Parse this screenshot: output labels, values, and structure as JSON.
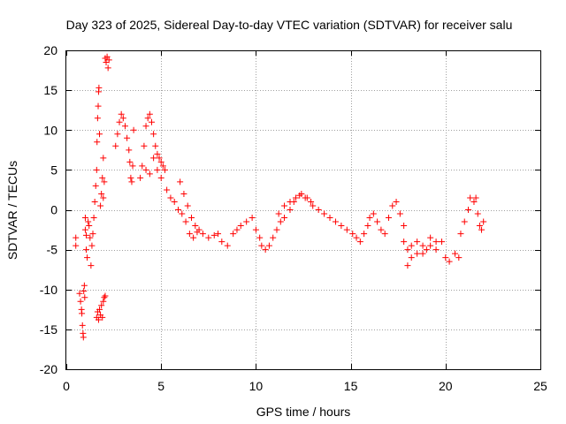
{
  "chart_data": {
    "type": "scatter",
    "title": "Day 323 of 2025, Sidereal Day-to-day VTEC variation (SDTVAR) for receiver salu",
    "xlabel": "GPS time / hours",
    "ylabel": "SDTVAR / TECUs",
    "xlim": [
      0,
      25
    ],
    "ylim": [
      -20,
      20
    ],
    "xticks": [
      0,
      5,
      10,
      15,
      20,
      25
    ],
    "yticks": [
      -20,
      -15,
      -10,
      -5,
      0,
      5,
      10,
      15,
      20
    ],
    "grid": true,
    "marker": "+",
    "color": "#ff0000",
    "series": [
      {
        "name": "SDTVAR",
        "points": [
          [
            0.5,
            -3.5
          ],
          [
            0.5,
            -4.5
          ],
          [
            0.7,
            -10.5
          ],
          [
            0.75,
            -11.5
          ],
          [
            0.8,
            -12.5
          ],
          [
            0.82,
            -13.0
          ],
          [
            0.85,
            -14.5
          ],
          [
            0.88,
            -15.5
          ],
          [
            0.9,
            -16.0
          ],
          [
            0.92,
            -10.2
          ],
          [
            0.95,
            -9.5
          ],
          [
            0.97,
            -11.0
          ],
          [
            1.0,
            -1.0
          ],
          [
            1.0,
            -2.5
          ],
          [
            1.05,
            -3.2
          ],
          [
            1.05,
            -5.0
          ],
          [
            1.1,
            -6.0
          ],
          [
            1.15,
            -1.5
          ],
          [
            1.2,
            -2.0
          ],
          [
            1.25,
            -3.5
          ],
          [
            1.3,
            -7.0
          ],
          [
            1.35,
            -4.5
          ],
          [
            1.4,
            -3.0
          ],
          [
            1.45,
            -1.0
          ],
          [
            1.5,
            1.0
          ],
          [
            1.55,
            3.0
          ],
          [
            1.6,
            5.0
          ],
          [
            1.62,
            8.5
          ],
          [
            1.65,
            11.5
          ],
          [
            1.68,
            13.0
          ],
          [
            1.7,
            14.8
          ],
          [
            1.72,
            15.3
          ],
          [
            1.75,
            9.5
          ],
          [
            1.6,
            -13.5
          ],
          [
            1.65,
            -12.8
          ],
          [
            1.7,
            -13.8
          ],
          [
            1.75,
            -12.5
          ],
          [
            1.8,
            -13.2
          ],
          [
            1.85,
            -12.0
          ],
          [
            1.9,
            -13.5
          ],
          [
            1.95,
            -11.5
          ],
          [
            2.0,
            -11.0
          ],
          [
            2.05,
            -10.8
          ],
          [
            1.8,
            0.5
          ],
          [
            1.85,
            2.0
          ],
          [
            1.9,
            4.0
          ],
          [
            1.95,
            6.5
          ],
          [
            2.0,
            3.5
          ],
          [
            1.95,
            1.5
          ],
          [
            2.05,
            19.0
          ],
          [
            2.1,
            18.5
          ],
          [
            2.15,
            19.2
          ],
          [
            2.2,
            17.8
          ],
          [
            2.25,
            18.8
          ],
          [
            2.6,
            8.0
          ],
          [
            2.7,
            9.5
          ],
          [
            2.8,
            11.0
          ],
          [
            2.9,
            12.0
          ],
          [
            3.0,
            11.5
          ],
          [
            3.1,
            10.5
          ],
          [
            3.2,
            9.0
          ],
          [
            3.3,
            7.5
          ],
          [
            3.35,
            6.0
          ],
          [
            3.4,
            4.0
          ],
          [
            3.45,
            3.5
          ],
          [
            3.5,
            5.5
          ],
          [
            3.55,
            10.0
          ],
          [
            3.9,
            4.0
          ],
          [
            4.0,
            5.5
          ],
          [
            4.1,
            8.0
          ],
          [
            4.2,
            10.5
          ],
          [
            4.3,
            11.5
          ],
          [
            4.4,
            12.0
          ],
          [
            4.5,
            11.0
          ],
          [
            4.6,
            9.5
          ],
          [
            4.7,
            8.0
          ],
          [
            4.8,
            7.0
          ],
          [
            4.9,
            6.5
          ],
          [
            5.0,
            6.0
          ],
          [
            4.2,
            5.0
          ],
          [
            4.4,
            4.5
          ],
          [
            4.6,
            6.5
          ],
          [
            4.8,
            5.0
          ],
          [
            5.0,
            4.0
          ],
          [
            5.1,
            5.5
          ],
          [
            5.2,
            5.0
          ],
          [
            5.3,
            2.5
          ],
          [
            5.5,
            1.5
          ],
          [
            5.7,
            1.0
          ],
          [
            5.9,
            0.0
          ],
          [
            6.1,
            -0.5
          ],
          [
            6.0,
            3.5
          ],
          [
            6.2,
            2.0
          ],
          [
            6.4,
            0.5
          ],
          [
            6.6,
            -1.0
          ],
          [
            6.8,
            -2.0
          ],
          [
            7.0,
            -2.5
          ],
          [
            6.3,
            -1.5
          ],
          [
            6.5,
            -3.0
          ],
          [
            6.7,
            -3.5
          ],
          [
            6.9,
            -2.8
          ],
          [
            7.2,
            -3.0
          ],
          [
            7.5,
            -3.5
          ],
          [
            7.8,
            -3.2
          ],
          [
            8.0,
            -3.0
          ],
          [
            8.2,
            -4.0
          ],
          [
            8.5,
            -4.5
          ],
          [
            8.8,
            -3.0
          ],
          [
            9.0,
            -2.5
          ],
          [
            9.2,
            -2.0
          ],
          [
            9.5,
            -1.5
          ],
          [
            9.8,
            -1.0
          ],
          [
            10.0,
            -2.5
          ],
          [
            10.2,
            -3.5
          ],
          [
            10.3,
            -4.5
          ],
          [
            10.5,
            -5.0
          ],
          [
            10.7,
            -4.5
          ],
          [
            10.9,
            -3.5
          ],
          [
            11.1,
            -2.5
          ],
          [
            11.3,
            -1.5
          ],
          [
            11.5,
            -1.0
          ],
          [
            11.8,
            0.0
          ],
          [
            12.0,
            1.0
          ],
          [
            12.3,
            1.8
          ],
          [
            12.6,
            1.5
          ],
          [
            12.9,
            1.0
          ],
          [
            11.2,
            -0.5
          ],
          [
            11.5,
            0.5
          ],
          [
            11.8,
            1.0
          ],
          [
            12.1,
            1.5
          ],
          [
            12.4,
            2.0
          ],
          [
            12.7,
            1.5
          ],
          [
            13.0,
            0.5
          ],
          [
            13.3,
            0.0
          ],
          [
            13.6,
            -0.5
          ],
          [
            13.9,
            -1.0
          ],
          [
            14.2,
            -1.5
          ],
          [
            14.5,
            -2.0
          ],
          [
            14.8,
            -2.5
          ],
          [
            15.1,
            -3.0
          ],
          [
            15.3,
            -3.5
          ],
          [
            15.5,
            -4.0
          ],
          [
            15.7,
            -3.0
          ],
          [
            15.9,
            -2.0
          ],
          [
            16.0,
            -1.0
          ],
          [
            16.2,
            -0.5
          ],
          [
            16.4,
            -1.5
          ],
          [
            16.6,
            -2.5
          ],
          [
            16.8,
            -3.0
          ],
          [
            17.0,
            -1.0
          ],
          [
            17.2,
            0.5
          ],
          [
            17.4,
            1.0
          ],
          [
            17.6,
            -0.5
          ],
          [
            17.8,
            -2.0
          ],
          [
            17.8,
            -4.0
          ],
          [
            18.0,
            -5.0
          ],
          [
            18.2,
            -4.5
          ],
          [
            18.5,
            -4.0
          ],
          [
            18.8,
            -5.5
          ],
          [
            19.0,
            -5.0
          ],
          [
            19.2,
            -4.5
          ],
          [
            19.5,
            -5.0
          ],
          [
            19.8,
            -4.0
          ],
          [
            20.0,
            -6.0
          ],
          [
            20.2,
            -6.5
          ],
          [
            18.0,
            -7.0
          ],
          [
            18.2,
            -6.0
          ],
          [
            18.5,
            -5.5
          ],
          [
            18.8,
            -4.5
          ],
          [
            19.2,
            -3.5
          ],
          [
            19.5,
            -4.0
          ],
          [
            20.5,
            -5.5
          ],
          [
            20.7,
            -6.0
          ],
          [
            20.8,
            -3.0
          ],
          [
            21.0,
            -1.5
          ],
          [
            21.2,
            0.0
          ],
          [
            21.3,
            1.5
          ],
          [
            21.5,
            1.0
          ],
          [
            21.6,
            1.5
          ],
          [
            21.7,
            -0.5
          ],
          [
            21.8,
            -2.0
          ],
          [
            21.9,
            -2.5
          ],
          [
            22.0,
            -1.5
          ]
        ]
      }
    ]
  }
}
